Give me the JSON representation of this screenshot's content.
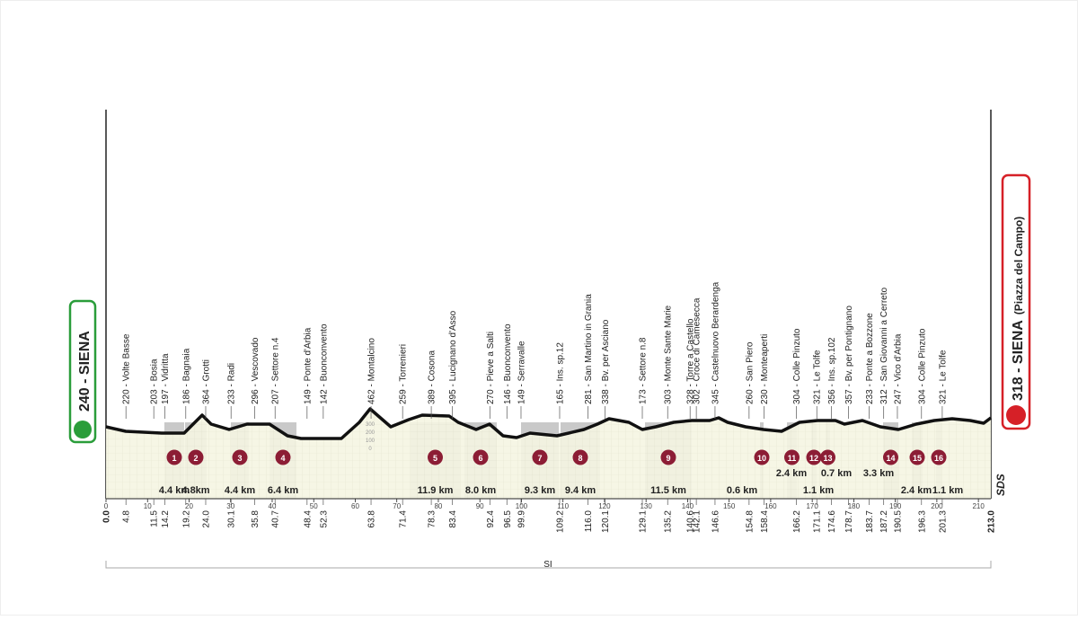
{
  "start": {
    "label": "240 - SIENA",
    "km": "0.0"
  },
  "finish": {
    "label": "318 - SIENA",
    "sublabel": "(Piazza del Campo)",
    "km": "213.0"
  },
  "waypoints": [
    {
      "label": "220 - Volte Basse",
      "km": "4.8"
    },
    {
      "label": "203 - Bosia",
      "km": "11.5"
    },
    {
      "label": "197 - Vidritta",
      "km": "14.2"
    },
    {
      "label": "186 - Bagnaia",
      "km": "19.2"
    },
    {
      "label": "364 - Grotti",
      "km": "24.0"
    },
    {
      "label": "233 - Radi",
      "km": "30.1"
    },
    {
      "label": "296 - Vescovado",
      "km": "35.8"
    },
    {
      "label": "207 - Settore n.4",
      "km": "40.7"
    },
    {
      "label": "149 - Ponte d'Arbia",
      "km": "48.4"
    },
    {
      "label": "142 - Buonconvento",
      "km": "52.3"
    },
    {
      "label": "462 - Montalcino",
      "km": "63.8"
    },
    {
      "label": "259 - Torrenieri",
      "km": "71.4"
    },
    {
      "label": "389 - Cosona",
      "km": "78.3"
    },
    {
      "label": "395 - Lucignano d'Asso",
      "km": "83.4"
    },
    {
      "label": "270 - Pieve a Salti",
      "km": "92.4"
    },
    {
      "label": "146 - Buonconvento",
      "km": "96.5"
    },
    {
      "label": "149 - Serravalle",
      "km": "99.9"
    },
    {
      "label": "165 - Ins. sp.12",
      "km": "109.2"
    },
    {
      "label": "281 - San Martino in Grania",
      "km": "116.0"
    },
    {
      "label": "338 - Bv. per Asciano",
      "km": "120.1"
    },
    {
      "label": "173 - Settore n.8",
      "km": "129.1"
    },
    {
      "label": "303 - Monte Sante Marie",
      "km": "135.2"
    },
    {
      "label": "328 - Torre a Castello",
      "km": "140.6"
    },
    {
      "label": "302 - Croce di Camesecca",
      "km": "142.1"
    },
    {
      "label": "345 - Castelnuovo Berardenga",
      "km": "146.6"
    },
    {
      "label": "260 - San Piero",
      "km": "154.8"
    },
    {
      "label": "230 - Monteaperti",
      "km": "158.4"
    },
    {
      "label": "304 - Colle Pinzuto",
      "km": "166.2"
    },
    {
      "label": "321 - Le Tolfe",
      "km": "171.1"
    },
    {
      "label": "356 - Ins. sp.102",
      "km": "174.6"
    },
    {
      "label": "357 - Bv. per Pontignano",
      "km": "178.7"
    },
    {
      "label": "233 - Ponte a Bozzone",
      "km": "183.7"
    },
    {
      "label": "312 - San Giovanni a Cerreto",
      "km": "187.2"
    },
    {
      "label": "247 - Vico d'Arbia",
      "km": "190.5"
    },
    {
      "label": "304 - Colle Pinzuto",
      "km": "196.3"
    },
    {
      "label": "321 - Le Tolfe",
      "km": "201.3"
    }
  ],
  "sectors": [
    {
      "number": 1,
      "length": "4.4 km"
    },
    {
      "number": 2,
      "length": "4.8km"
    },
    {
      "number": 3,
      "length": "4.4 km"
    },
    {
      "number": 4,
      "length": "6.4 km"
    },
    {
      "number": 5,
      "length": "11.9 km"
    },
    {
      "number": 6,
      "length": "8.0 km"
    },
    {
      "number": 7,
      "length": "9.3 km"
    },
    {
      "number": 8,
      "length": "9.4 km"
    },
    {
      "number": 9,
      "length": "11.5 km"
    },
    {
      "number": 10,
      "length": "0.6 km"
    },
    {
      "number": 11,
      "length": "2.4 km"
    },
    {
      "number": 12,
      "length": "1.1 km"
    },
    {
      "number": 13,
      "length": "0.7 km"
    },
    {
      "number": 14,
      "length": "3.3 km"
    },
    {
      "number": 15,
      "length": "2.4 km"
    },
    {
      "number": 16,
      "length": "1.1 km"
    }
  ],
  "axis": {
    "max": 213,
    "ticks": [
      0,
      10,
      20,
      30,
      40,
      50,
      60,
      70,
      80,
      90,
      100,
      110,
      120,
      130,
      140,
      150,
      160,
      170,
      180,
      190,
      200,
      210
    ]
  },
  "scale_marks": [
    "300",
    "200",
    "100",
    "0"
  ],
  "province": "SI",
  "logo": "SDS"
}
